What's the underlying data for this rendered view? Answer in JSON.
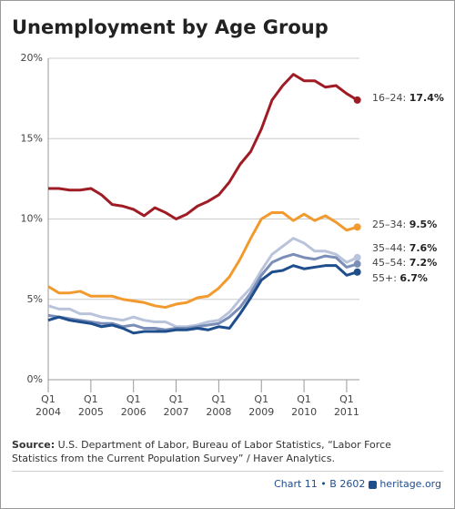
{
  "chart_data": {
    "type": "line",
    "title": "Unemployment by Age Group",
    "x": [
      2004,
      2004.25,
      2004.5,
      2004.75,
      2005,
      2005.25,
      2005.5,
      2005.75,
      2006,
      2006.25,
      2006.5,
      2006.75,
      2007,
      2007.25,
      2007.5,
      2007.75,
      2008,
      2008.25,
      2008.5,
      2008.75,
      2009,
      2009.25,
      2009.5,
      2009.75,
      2010,
      2010.25,
      2010.5,
      2010.75,
      2011,
      2011.25
    ],
    "xlim": [
      2004,
      2011.3
    ],
    "xticks": [
      {
        "value": 2004,
        "label": "2004"
      },
      {
        "value": 2005,
        "label": "2005"
      },
      {
        "value": 2006,
        "label": "2006"
      },
      {
        "value": 2007,
        "label": "2007"
      },
      {
        "value": 2008,
        "label": "2008"
      },
      {
        "value": 2009,
        "label": "2009"
      },
      {
        "value": 2010,
        "label": "2010"
      },
      {
        "value": 2011,
        "label": "2011"
      }
    ],
    "xtick_quarter": "Q1",
    "ylim": [
      0,
      20
    ],
    "yticks": [
      {
        "value": 0,
        "label": "0%"
      },
      {
        "value": 5,
        "label": "5%"
      },
      {
        "value": 10,
        "label": "10%"
      },
      {
        "value": 15,
        "label": "15%"
      },
      {
        "value": 20,
        "label": "20%"
      }
    ],
    "grid": true,
    "series": [
      {
        "name": "16–24:",
        "color": "#a01c24",
        "values": [
          11.9,
          11.9,
          11.8,
          11.8,
          11.9,
          11.5,
          10.9,
          10.8,
          10.6,
          10.2,
          10.7,
          10.4,
          10.0,
          10.3,
          10.8,
          11.1,
          11.5,
          12.3,
          13.4,
          14.2,
          15.6,
          17.4,
          18.3,
          19.0,
          18.6,
          18.6,
          18.2,
          18.3,
          17.8,
          17.4
        ],
        "value_labels": [
          null,
          null,
          null,
          null,
          null,
          null,
          null,
          null,
          null,
          null,
          null,
          null,
          null,
          null,
          null,
          null,
          null,
          null,
          null,
          null,
          null,
          null,
          null,
          null,
          null,
          null,
          null,
          null,
          null,
          "17.4%"
        ]
      },
      {
        "name": "25–34:",
        "color": "#f39a2e",
        "values": [
          5.8,
          5.4,
          5.4,
          5.5,
          5.2,
          5.2,
          5.2,
          5.0,
          4.9,
          4.8,
          4.6,
          4.5,
          4.7,
          4.8,
          5.1,
          5.2,
          5.7,
          6.4,
          7.5,
          8.8,
          10.0,
          10.4,
          10.4,
          9.9,
          10.3,
          9.9,
          10.2,
          9.8,
          9.3,
          9.5
        ],
        "value_labels": [
          null,
          null,
          null,
          null,
          null,
          null,
          null,
          null,
          null,
          null,
          null,
          null,
          null,
          null,
          null,
          null,
          null,
          null,
          null,
          null,
          null,
          null,
          null,
          null,
          null,
          null,
          null,
          null,
          null,
          "9.5%"
        ]
      },
      {
        "name": "35–44:",
        "color": "#b9c4dc",
        "values": [
          4.6,
          4.4,
          4.4,
          4.1,
          4.1,
          3.9,
          3.8,
          3.7,
          3.9,
          3.7,
          3.6,
          3.6,
          3.3,
          3.3,
          3.4,
          3.6,
          3.7,
          4.2,
          5.0,
          5.7,
          6.8,
          7.8,
          8.3,
          8.8,
          8.5,
          8.0,
          8.0,
          7.8,
          7.3,
          7.6
        ],
        "value_labels": [
          null,
          null,
          null,
          null,
          null,
          null,
          null,
          null,
          null,
          null,
          null,
          null,
          null,
          null,
          null,
          null,
          null,
          null,
          null,
          null,
          null,
          null,
          null,
          null,
          null,
          null,
          null,
          null,
          null,
          "7.6%"
        ]
      },
      {
        "name": "45–54:",
        "color": "#7b8eb8",
        "values": [
          4.0,
          3.9,
          3.8,
          3.7,
          3.6,
          3.5,
          3.5,
          3.3,
          3.4,
          3.2,
          3.2,
          3.1,
          3.2,
          3.2,
          3.3,
          3.4,
          3.5,
          3.9,
          4.5,
          5.4,
          6.5,
          7.3,
          7.6,
          7.8,
          7.6,
          7.5,
          7.7,
          7.6,
          7.0,
          7.2
        ],
        "value_labels": [
          null,
          null,
          null,
          null,
          null,
          null,
          null,
          null,
          null,
          null,
          null,
          null,
          null,
          null,
          null,
          null,
          null,
          null,
          null,
          null,
          null,
          null,
          null,
          null,
          null,
          null,
          null,
          null,
          null,
          "7.2%"
        ]
      },
      {
        "name": "55+:",
        "color": "#1f4e8c",
        "values": [
          3.7,
          3.9,
          3.7,
          3.6,
          3.5,
          3.3,
          3.4,
          3.2,
          2.9,
          3.0,
          3.0,
          3.0,
          3.1,
          3.1,
          3.2,
          3.1,
          3.3,
          3.2,
          4.1,
          5.1,
          6.2,
          6.7,
          6.8,
          7.1,
          6.9,
          7.0,
          7.1,
          7.1,
          6.5,
          6.7
        ],
        "value_labels": [
          null,
          null,
          null,
          null,
          null,
          null,
          null,
          null,
          null,
          null,
          null,
          null,
          null,
          null,
          null,
          null,
          null,
          null,
          null,
          null,
          null,
          null,
          null,
          null,
          null,
          null,
          null,
          null,
          null,
          "6.7%"
        ]
      }
    ],
    "source_label": "Source:",
    "source": "U.S. Department of Labor, Bureau of Labor Statistics, “Labor Force Statistics from the Current Population Survey” / Haver Analytics.",
    "footer_chart": "Chart 11 • B 2602",
    "footer_site": "heritage.org"
  }
}
